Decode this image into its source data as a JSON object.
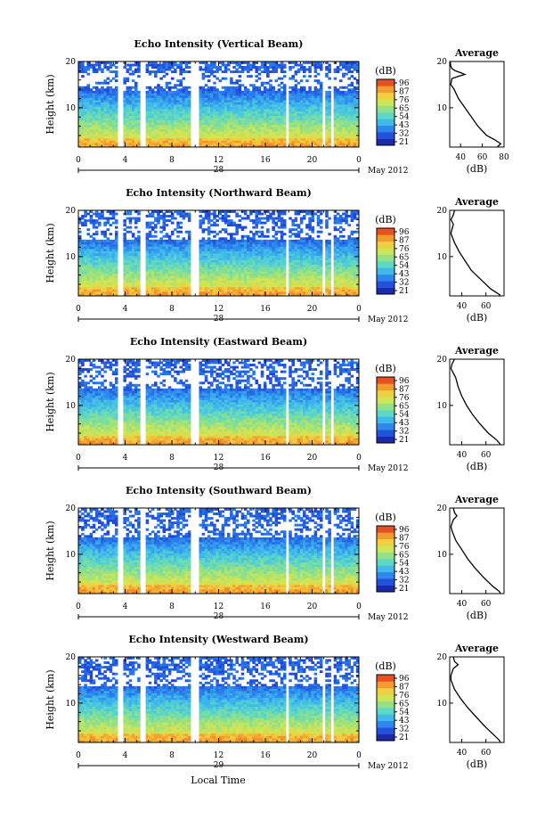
{
  "page": {
    "footer_xlabel": "Local Time"
  },
  "chart_data": [
    {
      "type": "heatmap",
      "title": "Echo Intensity (Vertical Beam)",
      "ylabel": "Height (km)",
      "ylim": [
        1.5,
        20
      ],
      "yticks": [
        "10",
        "20"
      ],
      "xticks": [
        "0",
        "4",
        "8",
        "12",
        "16",
        "20",
        "0"
      ],
      "date_day": "28",
      "date_month_year": "May 2012",
      "colorbar": {
        "unit": "(dB)",
        "ticks": [
          "96",
          "87",
          "76",
          "65",
          "54",
          "43",
          "32",
          "21"
        ]
      },
      "profile": {
        "title": "Average",
        "xlabel": "(dB)",
        "xticks": [
          "40",
          "60",
          "80"
        ],
        "xlim": [
          30,
          80
        ],
        "points": [
          [
            30.5,
            20
          ],
          [
            31,
            19
          ],
          [
            32,
            18.5
          ],
          [
            35,
            18
          ],
          [
            40,
            17.6
          ],
          [
            44,
            17.2
          ],
          [
            38,
            16.8
          ],
          [
            32,
            16.3
          ],
          [
            31,
            15
          ],
          [
            34,
            14
          ],
          [
            38,
            12
          ],
          [
            44,
            10
          ],
          [
            50,
            8
          ],
          [
            56,
            6
          ],
          [
            64,
            4
          ],
          [
            72,
            3
          ],
          [
            77,
            2.2
          ],
          [
            74,
            1.6
          ]
        ]
      }
    },
    {
      "type": "heatmap",
      "title": "Echo Intensity (Northward Beam)",
      "ylabel": "Height (km)",
      "ylim": [
        1.5,
        20
      ],
      "yticks": [
        "10",
        "20"
      ],
      "xticks": [
        "0",
        "4",
        "8",
        "12",
        "16",
        "20",
        "0"
      ],
      "date_day": "28",
      "date_month_year": "May 2012",
      "colorbar": {
        "unit": "(dB)",
        "ticks": [
          "96",
          "87",
          "76",
          "65",
          "54",
          "43",
          "32",
          "21"
        ]
      },
      "profile": {
        "title": "Average",
        "xlabel": "(dB)",
        "xticks": [
          "40",
          "60"
        ],
        "xlim": [
          30,
          75
        ],
        "points": [
          [
            34,
            20
          ],
          [
            33,
            19
          ],
          [
            31,
            18
          ],
          [
            33,
            17
          ],
          [
            32,
            16
          ],
          [
            31,
            15
          ],
          [
            34,
            13
          ],
          [
            38,
            11
          ],
          [
            43,
            9
          ],
          [
            48,
            7
          ],
          [
            56,
            5
          ],
          [
            64,
            3
          ],
          [
            70,
            2
          ],
          [
            72,
            1.6
          ]
        ]
      }
    },
    {
      "type": "heatmap",
      "title": "Echo Intensity (Eastward Beam)",
      "ylabel": "Height (km)",
      "ylim": [
        1.5,
        20
      ],
      "yticks": [
        "10",
        "20"
      ],
      "xticks": [
        "0",
        "4",
        "8",
        "12",
        "16",
        "20",
        "0"
      ],
      "date_day": "28",
      "date_month_year": "May 2012",
      "colorbar": {
        "unit": "(dB)",
        "ticks": [
          "96",
          "87",
          "76",
          "65",
          "54",
          "43",
          "32",
          "21"
        ]
      },
      "profile": {
        "title": "Average",
        "xlabel": "(dB)",
        "xticks": [
          "40",
          "60"
        ],
        "xlim": [
          30,
          75
        ],
        "points": [
          [
            34,
            20
          ],
          [
            32,
            19
          ],
          [
            31,
            18
          ],
          [
            33,
            17
          ],
          [
            35,
            16
          ],
          [
            37,
            14
          ],
          [
            40,
            12
          ],
          [
            44,
            10
          ],
          [
            49,
            8
          ],
          [
            55,
            6
          ],
          [
            62,
            4
          ],
          [
            69,
            2.5
          ],
          [
            72,
            1.6
          ]
        ]
      }
    },
    {
      "type": "heatmap",
      "title": "Echo Intensity (Southward Beam)",
      "ylabel": "Height (km)",
      "ylim": [
        1.5,
        20
      ],
      "yticks": [
        "10",
        "20"
      ],
      "xticks": [
        "0",
        "4",
        "8",
        "12",
        "16",
        "20",
        "0"
      ],
      "date_day": "28",
      "date_month_year": "May 2012",
      "colorbar": {
        "unit": "(dB)",
        "ticks": [
          "96",
          "87",
          "76",
          "65",
          "54",
          "43",
          "32",
          "21"
        ]
      },
      "profile": {
        "title": "Average",
        "xlabel": "(dB)",
        "xticks": [
          "40",
          "60"
        ],
        "xlim": [
          30,
          75
        ],
        "points": [
          [
            33,
            20
          ],
          [
            34,
            19
          ],
          [
            36,
            18.3
          ],
          [
            33,
            17.5
          ],
          [
            31,
            16
          ],
          [
            32,
            15
          ],
          [
            35,
            13
          ],
          [
            40,
            11
          ],
          [
            45,
            9
          ],
          [
            51,
            7
          ],
          [
            58,
            5
          ],
          [
            66,
            3
          ],
          [
            71,
            2
          ],
          [
            72,
            1.6
          ]
        ]
      }
    },
    {
      "type": "heatmap",
      "title": "Echo Intensity (Westward Beam)",
      "ylabel": "Height (km)",
      "ylim": [
        1.5,
        20
      ],
      "yticks": [
        "10",
        "20"
      ],
      "xticks": [
        "0",
        "4",
        "8",
        "12",
        "16",
        "20",
        "0"
      ],
      "date_day": "29",
      "date_month_year": "May 2012",
      "colorbar": {
        "unit": "(dB)",
        "ticks": [
          "96",
          "87",
          "76",
          "65",
          "54",
          "43",
          "32",
          "21"
        ]
      },
      "profile": {
        "title": "Average",
        "xlabel": "(dB)",
        "xticks": [
          "40",
          "60"
        ],
        "xlim": [
          30,
          75
        ],
        "points": [
          [
            33,
            20
          ],
          [
            34,
            19
          ],
          [
            37,
            18.3
          ],
          [
            33,
            17.5
          ],
          [
            31,
            16
          ],
          [
            31,
            15
          ],
          [
            34,
            13
          ],
          [
            39,
            11
          ],
          [
            45,
            9
          ],
          [
            52,
            7
          ],
          [
            59,
            5
          ],
          [
            67,
            3
          ],
          [
            71,
            2
          ],
          [
            72,
            1.6
          ]
        ]
      }
    }
  ]
}
